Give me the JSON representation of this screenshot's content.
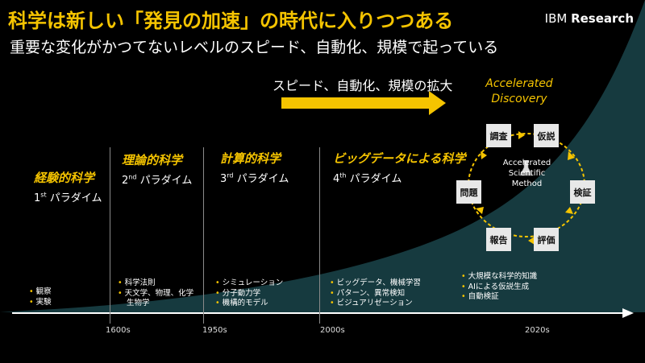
{
  "header": {
    "title": "科学は新しい「発見の加速」の時代に入りつつある",
    "subtitle": "重要な変化がかつてないレベルのスピード、自動化、規模で起っている",
    "brand_prefix": "IBM",
    "brand_bold": "Research"
  },
  "arrow_label": "スピード、自動化、規模の拡大",
  "accelerated_discovery": {
    "line1": "Accelerated",
    "line2": "Discovery"
  },
  "paradigms": [
    {
      "title": "経験的科学",
      "ordinal": "1",
      "suffix": "st",
      "name": "パラダイム",
      "bullets": [
        "観察",
        "実験"
      ]
    },
    {
      "title": "理論的科学",
      "ordinal": "2",
      "suffix": "nd",
      "name": "パラダイム",
      "bullets": [
        "科学法則",
        "天文学、物理、化学",
        "生物学"
      ]
    },
    {
      "title": "計算的科学",
      "ordinal": "3",
      "suffix": "rd",
      "name": "パラダイム",
      "bullets": [
        "シミュレーション",
        "分子動力学",
        "機構的モデル"
      ]
    },
    {
      "title": "ビッグデータによる科学",
      "ordinal": "4",
      "suffix": "th",
      "name": "パラダイム",
      "bullets": [
        "ビッグデータ、機械学習",
        "パターン、異常検知",
        "ビジュアリゼーション"
      ]
    }
  ],
  "future_bullets": [
    "大規模な科学的知識",
    "AIによる仮説生成",
    "自動検証"
  ],
  "timeline": {
    "ticks": [
      "1600s",
      "1950s",
      "2000s",
      "2020s"
    ]
  },
  "method_cycle": {
    "steps": [
      "調査",
      "仮説",
      "検証",
      "評価",
      "報告",
      "問題"
    ],
    "center_line1": "Accelerated",
    "center_line2": "Scientific",
    "center_line3": "Method",
    "center_icon": "flask-icon"
  },
  "colors": {
    "accent": "#f5c400",
    "curve_fill": "#163a3f",
    "background": "#000000"
  }
}
